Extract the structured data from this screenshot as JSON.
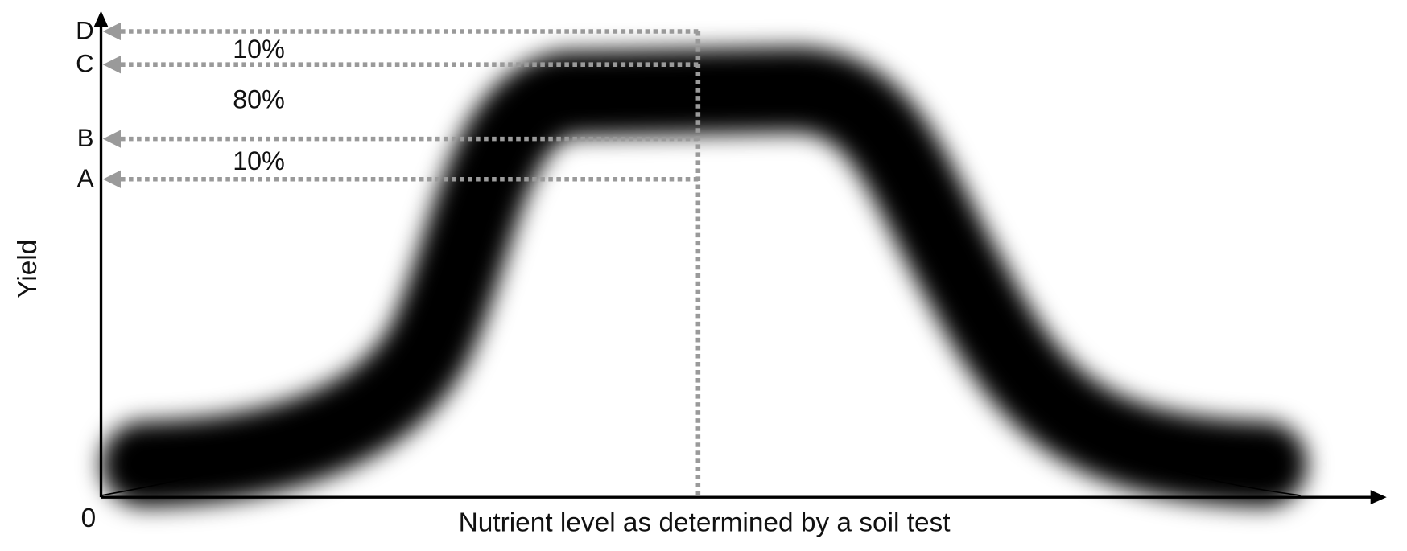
{
  "y_axis": {
    "title": "Yield",
    "origin": "0"
  },
  "x_axis": {
    "title": "Nutrient level as determined by a soil test"
  },
  "levels": [
    "D",
    "C",
    "B",
    "A"
  ],
  "bands": [
    "10%",
    "80%",
    "10%"
  ]
}
